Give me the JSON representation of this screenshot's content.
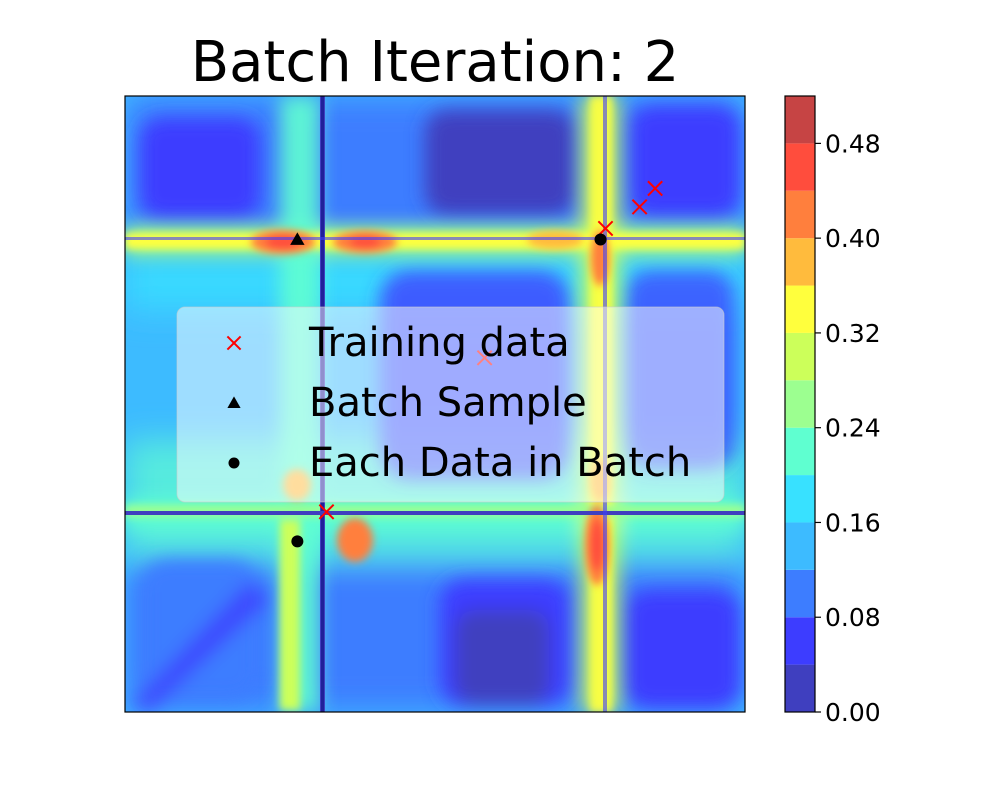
{
  "chart_data": {
    "type": "heatmap",
    "title": "Batch Iteration: 2",
    "xlabel": "",
    "ylabel": "",
    "x_range": [
      0,
      1
    ],
    "y_range": [
      0,
      1
    ],
    "axis_ticks_visible": false,
    "grid": false,
    "colormap": "jet",
    "colorbar": {
      "levels": [
        0.0,
        0.04,
        0.08,
        0.12,
        0.16,
        0.2,
        0.24,
        0.28,
        0.32,
        0.36,
        0.4,
        0.44,
        0.48,
        0.52
      ],
      "tick_labels": [
        "0.00",
        "0.08",
        "0.16",
        "0.24",
        "0.32",
        "0.40",
        "0.48"
      ],
      "tick_values": [
        0.0,
        0.08,
        0.16,
        0.24,
        0.32,
        0.4,
        0.48
      ],
      "colors": [
        "#3f3fbf",
        "#3d3dff",
        "#3d7dff",
        "#3dbbff",
        "#38e1ff",
        "#5fffd0",
        "#9cff90",
        "#ccff5a",
        "#ffff3d",
        "#ffbb3d",
        "#ff7f3d",
        "#ff4d3d",
        "#c64444"
      ]
    },
    "field_features": {
      "vertical_ridges_x": [
        0.28,
        0.77
      ],
      "horizontal_ridges_y": [
        0.77,
        0.32
      ]
    },
    "series": [
      {
        "name": "Training data",
        "marker": "x",
        "color": "#ff0000",
        "points": [
          [
            0.775,
            0.785
          ],
          [
            0.83,
            0.82
          ],
          [
            0.855,
            0.85
          ],
          [
            0.58,
            0.575
          ],
          [
            0.325,
            0.325
          ]
        ]
      },
      {
        "name": "Batch Sample",
        "marker": "triangle",
        "color": "#000000",
        "points": [
          [
            0.278,
            0.767
          ]
        ]
      },
      {
        "name": "Each Data in Batch",
        "marker": "circle",
        "color": "#000000",
        "points": [
          [
            0.767,
            0.767
          ],
          [
            0.278,
            0.277
          ]
        ]
      }
    ],
    "legend_placement": "center"
  }
}
